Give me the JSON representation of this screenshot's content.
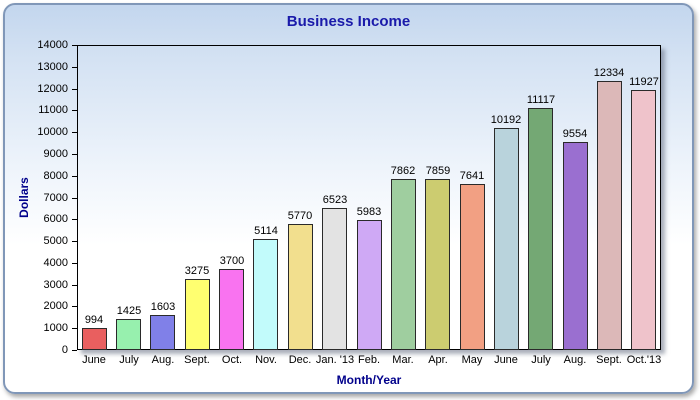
{
  "chart_data": {
    "type": "bar",
    "title": "Business Income",
    "xlabel": "Month/Year",
    "ylabel": "Dollars",
    "categories": [
      "June",
      "July",
      "Aug.",
      "Sept.",
      "Oct.",
      "Nov.",
      "Dec.",
      "Jan. '13",
      "Feb.",
      "Mar.",
      "Apr.",
      "May",
      "June",
      "July",
      "Aug.",
      "Sept.",
      "Oct.'13"
    ],
    "values": [
      994,
      1425,
      1603,
      3275,
      3700,
      5114,
      5770,
      6523,
      5983,
      7862,
      7859,
      7641,
      10192,
      11117,
      9554,
      12334,
      11927
    ],
    "bar_colors": [
      "#e95f5f",
      "#97f0ae",
      "#8080e8",
      "#ffff70",
      "#f973f0",
      "#c2fbfb",
      "#f2df8e",
      "#e3e3e3",
      "#cfa9f5",
      "#9fce9f",
      "#cccc70",
      "#f2a083",
      "#b9d3dc",
      "#74a874",
      "#9a6fd0",
      "#dcb8b8",
      "#efc3cb"
    ],
    "ylim": [
      0,
      14000
    ],
    "ytick_step": 1000,
    "grid": false,
    "legend": false,
    "colors": {
      "title": "#1a1aaa",
      "axis_label": "#00008b",
      "tick_label": "#000000",
      "plot_border": "#000000",
      "frame_border": "#8097b8"
    }
  }
}
